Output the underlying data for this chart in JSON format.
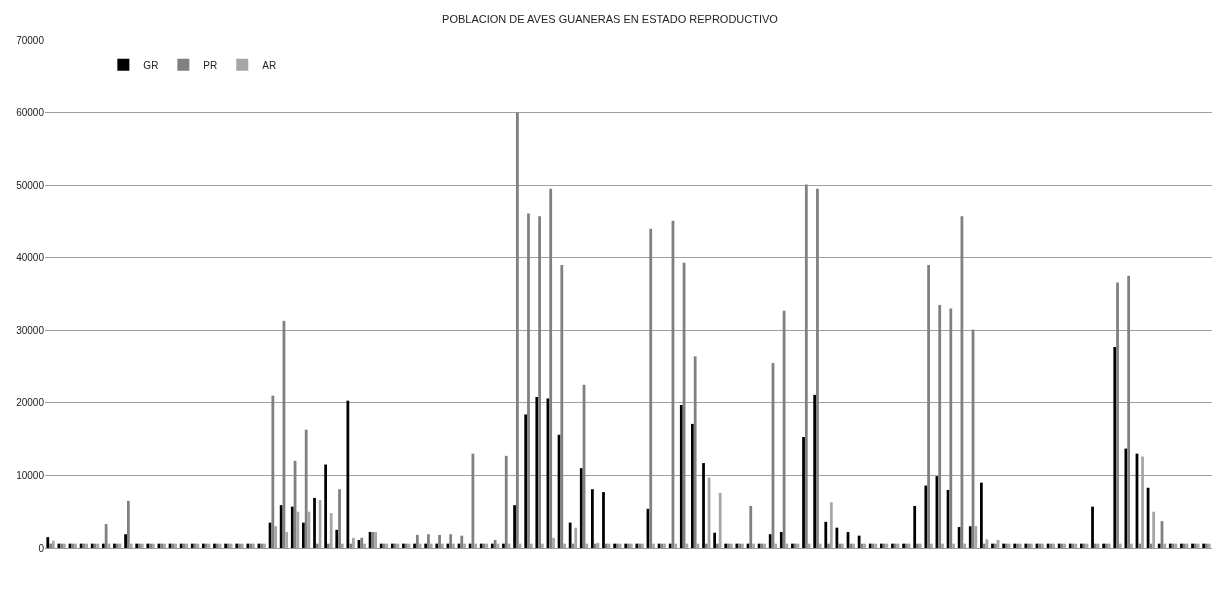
{
  "chart_data": {
    "type": "bar",
    "title": "POBLACION DE AVES GUANERAS EN ESTADO REPRODUCTIVO",
    "categories": [
      null,
      null,
      null,
      null,
      null,
      null,
      null,
      null,
      null,
      null,
      null,
      null,
      null,
      null,
      null,
      null,
      null,
      null,
      null,
      null,
      null,
      null,
      null,
      null,
      null,
      null,
      null,
      null,
      null,
      null,
      null,
      null,
      null,
      null,
      null,
      null,
      null,
      null,
      null,
      null,
      null,
      null,
      null,
      null,
      null,
      null,
      null,
      null,
      null,
      null,
      null,
      null,
      null,
      null,
      null,
      null,
      null,
      null,
      null,
      null,
      null,
      null,
      null,
      null,
      null,
      null,
      null,
      null,
      null,
      null,
      null,
      null,
      null,
      null,
      null,
      null,
      null,
      null,
      null,
      null,
      null,
      null,
      null,
      null,
      null,
      null,
      null,
      null,
      null,
      null,
      null,
      null,
      null,
      null,
      null,
      null,
      null,
      null,
      null,
      null,
      null,
      null,
      null,
      null,
      null
    ],
    "series": [
      {
        "name": "GR",
        "color": "#000000",
        "values": [
          1500,
          600,
          600,
          600,
          600,
          600,
          600,
          1900,
          600,
          600,
          600,
          600,
          600,
          600,
          600,
          600,
          600,
          600,
          600,
          600,
          3500,
          5900,
          5700,
          3500,
          6900,
          11500,
          2500,
          20300,
          1100,
          2200,
          600,
          600,
          600,
          600,
          600,
          600,
          600,
          600,
          600,
          600,
          600,
          600,
          5900,
          18400,
          20800,
          20600,
          15600,
          3500,
          11000,
          8100,
          7700,
          600,
          600,
          600,
          5400,
          600,
          600,
          19700,
          17100,
          11700,
          2100,
          600,
          600,
          600,
          600,
          1900,
          2200,
          600,
          15300,
          21100,
          3600,
          2800,
          2200,
          1700,
          600,
          600,
          600,
          600,
          5800,
          8600,
          9900,
          8000,
          2900,
          3000,
          9000,
          600,
          600,
          600,
          600,
          600,
          600,
          600,
          600,
          600,
          5700,
          600,
          27700,
          13700,
          13000,
          8300,
          600,
          600,
          600,
          600,
          600
        ]
      },
      {
        "name": "PR",
        "color": "#808080",
        "values": [
          600,
          600,
          600,
          600,
          600,
          3300,
          600,
          6500,
          600,
          600,
          600,
          600,
          600,
          600,
          600,
          600,
          600,
          600,
          600,
          600,
          21000,
          31300,
          12000,
          16300,
          600,
          600,
          8100,
          600,
          1400,
          2200,
          600,
          600,
          600,
          1800,
          1900,
          1800,
          1900,
          1700,
          13000,
          600,
          1100,
          12700,
          60000,
          46100,
          45700,
          49500,
          39000,
          600,
          22500,
          600,
          600,
          600,
          600,
          600,
          44000,
          600,
          45100,
          39300,
          26400,
          600,
          600,
          600,
          600,
          5800,
          600,
          25500,
          32700,
          600,
          50100,
          49500,
          600,
          600,
          600,
          600,
          600,
          600,
          600,
          600,
          600,
          39000,
          33500,
          33000,
          45700,
          30100,
          600,
          600,
          600,
          600,
          600,
          600,
          600,
          600,
          600,
          600,
          600,
          600,
          36600,
          37500,
          600,
          600,
          3700,
          600,
          600,
          600,
          600
        ]
      },
      {
        "name": "AR",
        "color": "#a6a6a6",
        "values": [
          1000,
          600,
          600,
          600,
          600,
          600,
          600,
          600,
          600,
          600,
          600,
          600,
          600,
          600,
          600,
          600,
          600,
          600,
          600,
          600,
          3000,
          2200,
          5000,
          5000,
          6600,
          4800,
          600,
          1400,
          600,
          2200,
          600,
          600,
          600,
          600,
          600,
          600,
          600,
          600,
          600,
          600,
          600,
          600,
          600,
          600,
          600,
          1400,
          600,
          2800,
          600,
          700,
          600,
          600,
          600,
          600,
          600,
          600,
          600,
          600,
          600,
          9700,
          7600,
          600,
          600,
          600,
          600,
          600,
          600,
          600,
          600,
          600,
          6300,
          600,
          600,
          600,
          600,
          600,
          600,
          600,
          600,
          600,
          600,
          600,
          600,
          3000,
          1200,
          1100,
          600,
          600,
          600,
          600,
          600,
          600,
          600,
          600,
          600,
          600,
          600,
          600,
          12600,
          5000,
          600,
          600,
          600,
          600,
          600
        ]
      }
    ],
    "ylim": [
      0,
      70000
    ],
    "yticks": [
      0,
      10000,
      20000,
      30000,
      40000,
      50000,
      60000,
      70000
    ],
    "grid": "y",
    "legend": "top left",
    "tick_labels": "y"
  }
}
